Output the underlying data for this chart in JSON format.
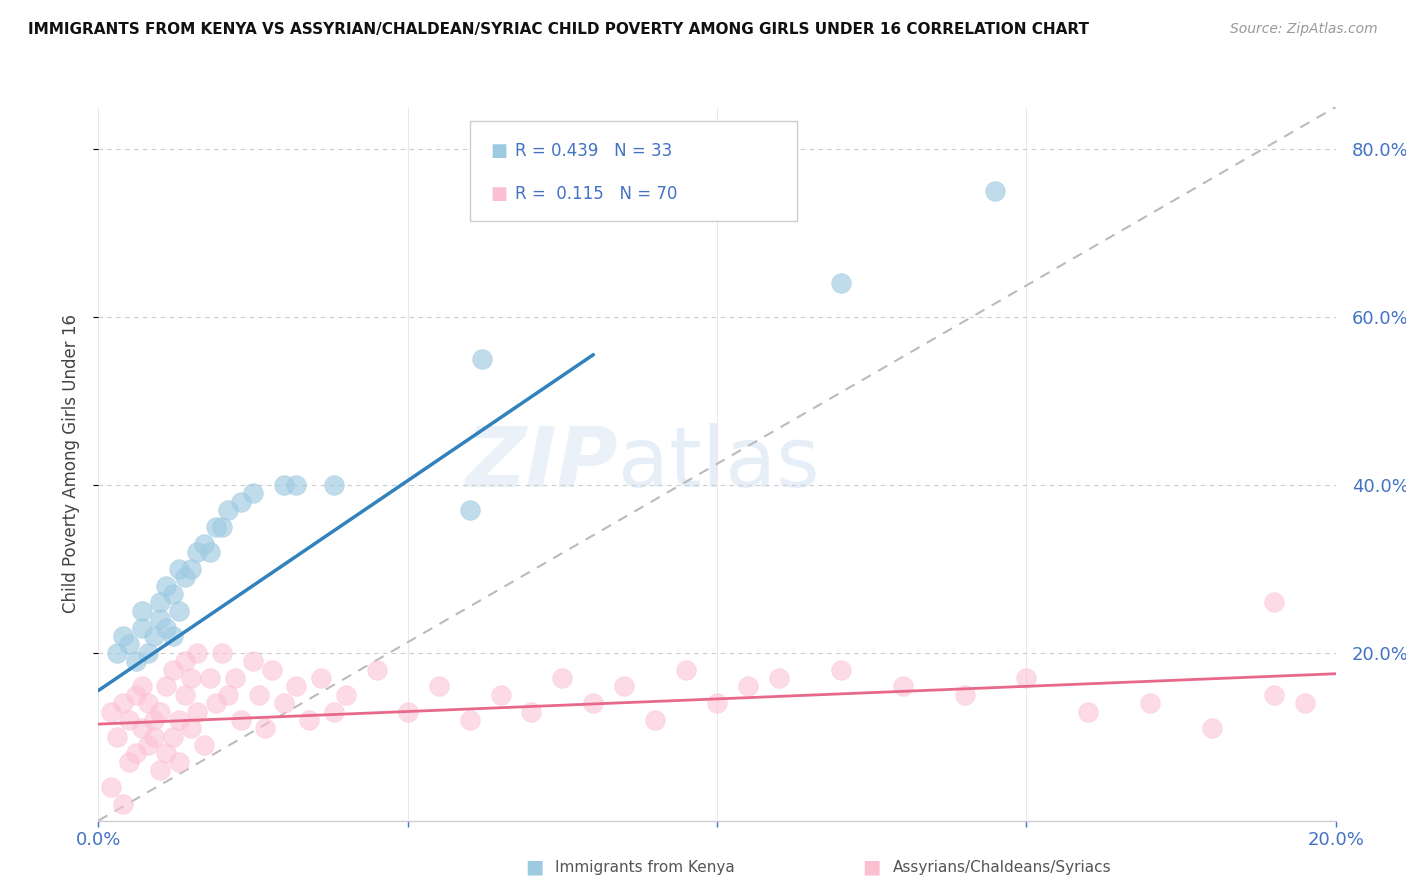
{
  "title": "IMMIGRANTS FROM KENYA VS ASSYRIAN/CHALDEAN/SYRIAC CHILD POVERTY AMONG GIRLS UNDER 16 CORRELATION CHART",
  "source": "Source: ZipAtlas.com",
  "ylabel": "Child Poverty Among Girls Under 16",
  "xlim": [
    0.0,
    0.2
  ],
  "ylim": [
    0.0,
    0.85
  ],
  "xticks": [
    0.0,
    0.05,
    0.1,
    0.15,
    0.2
  ],
  "xtick_labels": [
    "0.0%",
    "",
    "",
    "",
    "20.0%"
  ],
  "yticks_right": [
    0.2,
    0.4,
    0.6,
    0.8
  ],
  "ytick_labels_right": [
    "20.0%",
    "40.0%",
    "60.0%",
    "80.0%"
  ],
  "r_kenya": 0.439,
  "n_kenya": 33,
  "r_assyrian": 0.115,
  "n_assyrian": 70,
  "color_kenya": "#9ecae1",
  "color_kenya_line": "#3182bd",
  "color_assyrian": "#fcbfd2",
  "color_assyrian_line": "#e8688a",
  "color_axis_text": "#4472C4",
  "kenya_line_x": [
    0.0,
    0.08
  ],
  "kenya_line_y": [
    0.155,
    0.555
  ],
  "assyrian_line_x": [
    0.0,
    0.2
  ],
  "assyrian_line_y": [
    0.115,
    0.175
  ],
  "diag_line_x": [
    0.0,
    0.2
  ],
  "diag_line_y": [
    0.0,
    0.85
  ],
  "kenya_scatter_x": [
    0.003,
    0.004,
    0.005,
    0.006,
    0.007,
    0.007,
    0.008,
    0.009,
    0.01,
    0.01,
    0.011,
    0.011,
    0.012,
    0.012,
    0.013,
    0.013,
    0.014,
    0.015,
    0.016,
    0.017,
    0.018,
    0.019,
    0.02,
    0.021,
    0.023,
    0.025,
    0.03,
    0.032,
    0.038,
    0.06,
    0.062,
    0.12,
    0.145
  ],
  "kenya_scatter_y": [
    0.2,
    0.22,
    0.21,
    0.19,
    0.23,
    0.25,
    0.2,
    0.22,
    0.24,
    0.26,
    0.23,
    0.28,
    0.22,
    0.27,
    0.25,
    0.3,
    0.29,
    0.3,
    0.32,
    0.33,
    0.32,
    0.35,
    0.35,
    0.37,
    0.38,
    0.39,
    0.4,
    0.4,
    0.4,
    0.37,
    0.55,
    0.64,
    0.75
  ],
  "assyrian_scatter_x": [
    0.002,
    0.003,
    0.004,
    0.005,
    0.005,
    0.006,
    0.006,
    0.007,
    0.007,
    0.008,
    0.008,
    0.009,
    0.009,
    0.01,
    0.01,
    0.011,
    0.011,
    0.012,
    0.012,
    0.013,
    0.013,
    0.014,
    0.014,
    0.015,
    0.015,
    0.016,
    0.016,
    0.017,
    0.018,
    0.019,
    0.02,
    0.021,
    0.022,
    0.023,
    0.025,
    0.026,
    0.027,
    0.028,
    0.03,
    0.032,
    0.034,
    0.036,
    0.038,
    0.04,
    0.045,
    0.05,
    0.055,
    0.06,
    0.065,
    0.07,
    0.075,
    0.08,
    0.085,
    0.09,
    0.095,
    0.1,
    0.105,
    0.11,
    0.12,
    0.13,
    0.14,
    0.15,
    0.16,
    0.17,
    0.18,
    0.19,
    0.195,
    0.002,
    0.004,
    0.19
  ],
  "assyrian_scatter_y": [
    0.13,
    0.1,
    0.14,
    0.07,
    0.12,
    0.08,
    0.15,
    0.11,
    0.16,
    0.09,
    0.14,
    0.1,
    0.12,
    0.06,
    0.13,
    0.08,
    0.16,
    0.1,
    0.18,
    0.12,
    0.07,
    0.15,
    0.19,
    0.11,
    0.17,
    0.13,
    0.2,
    0.09,
    0.17,
    0.14,
    0.2,
    0.15,
    0.17,
    0.12,
    0.19,
    0.15,
    0.11,
    0.18,
    0.14,
    0.16,
    0.12,
    0.17,
    0.13,
    0.15,
    0.18,
    0.13,
    0.16,
    0.12,
    0.15,
    0.13,
    0.17,
    0.14,
    0.16,
    0.12,
    0.18,
    0.14,
    0.16,
    0.17,
    0.18,
    0.16,
    0.15,
    0.17,
    0.13,
    0.14,
    0.11,
    0.15,
    0.14,
    0.04,
    0.02,
    0.26
  ]
}
